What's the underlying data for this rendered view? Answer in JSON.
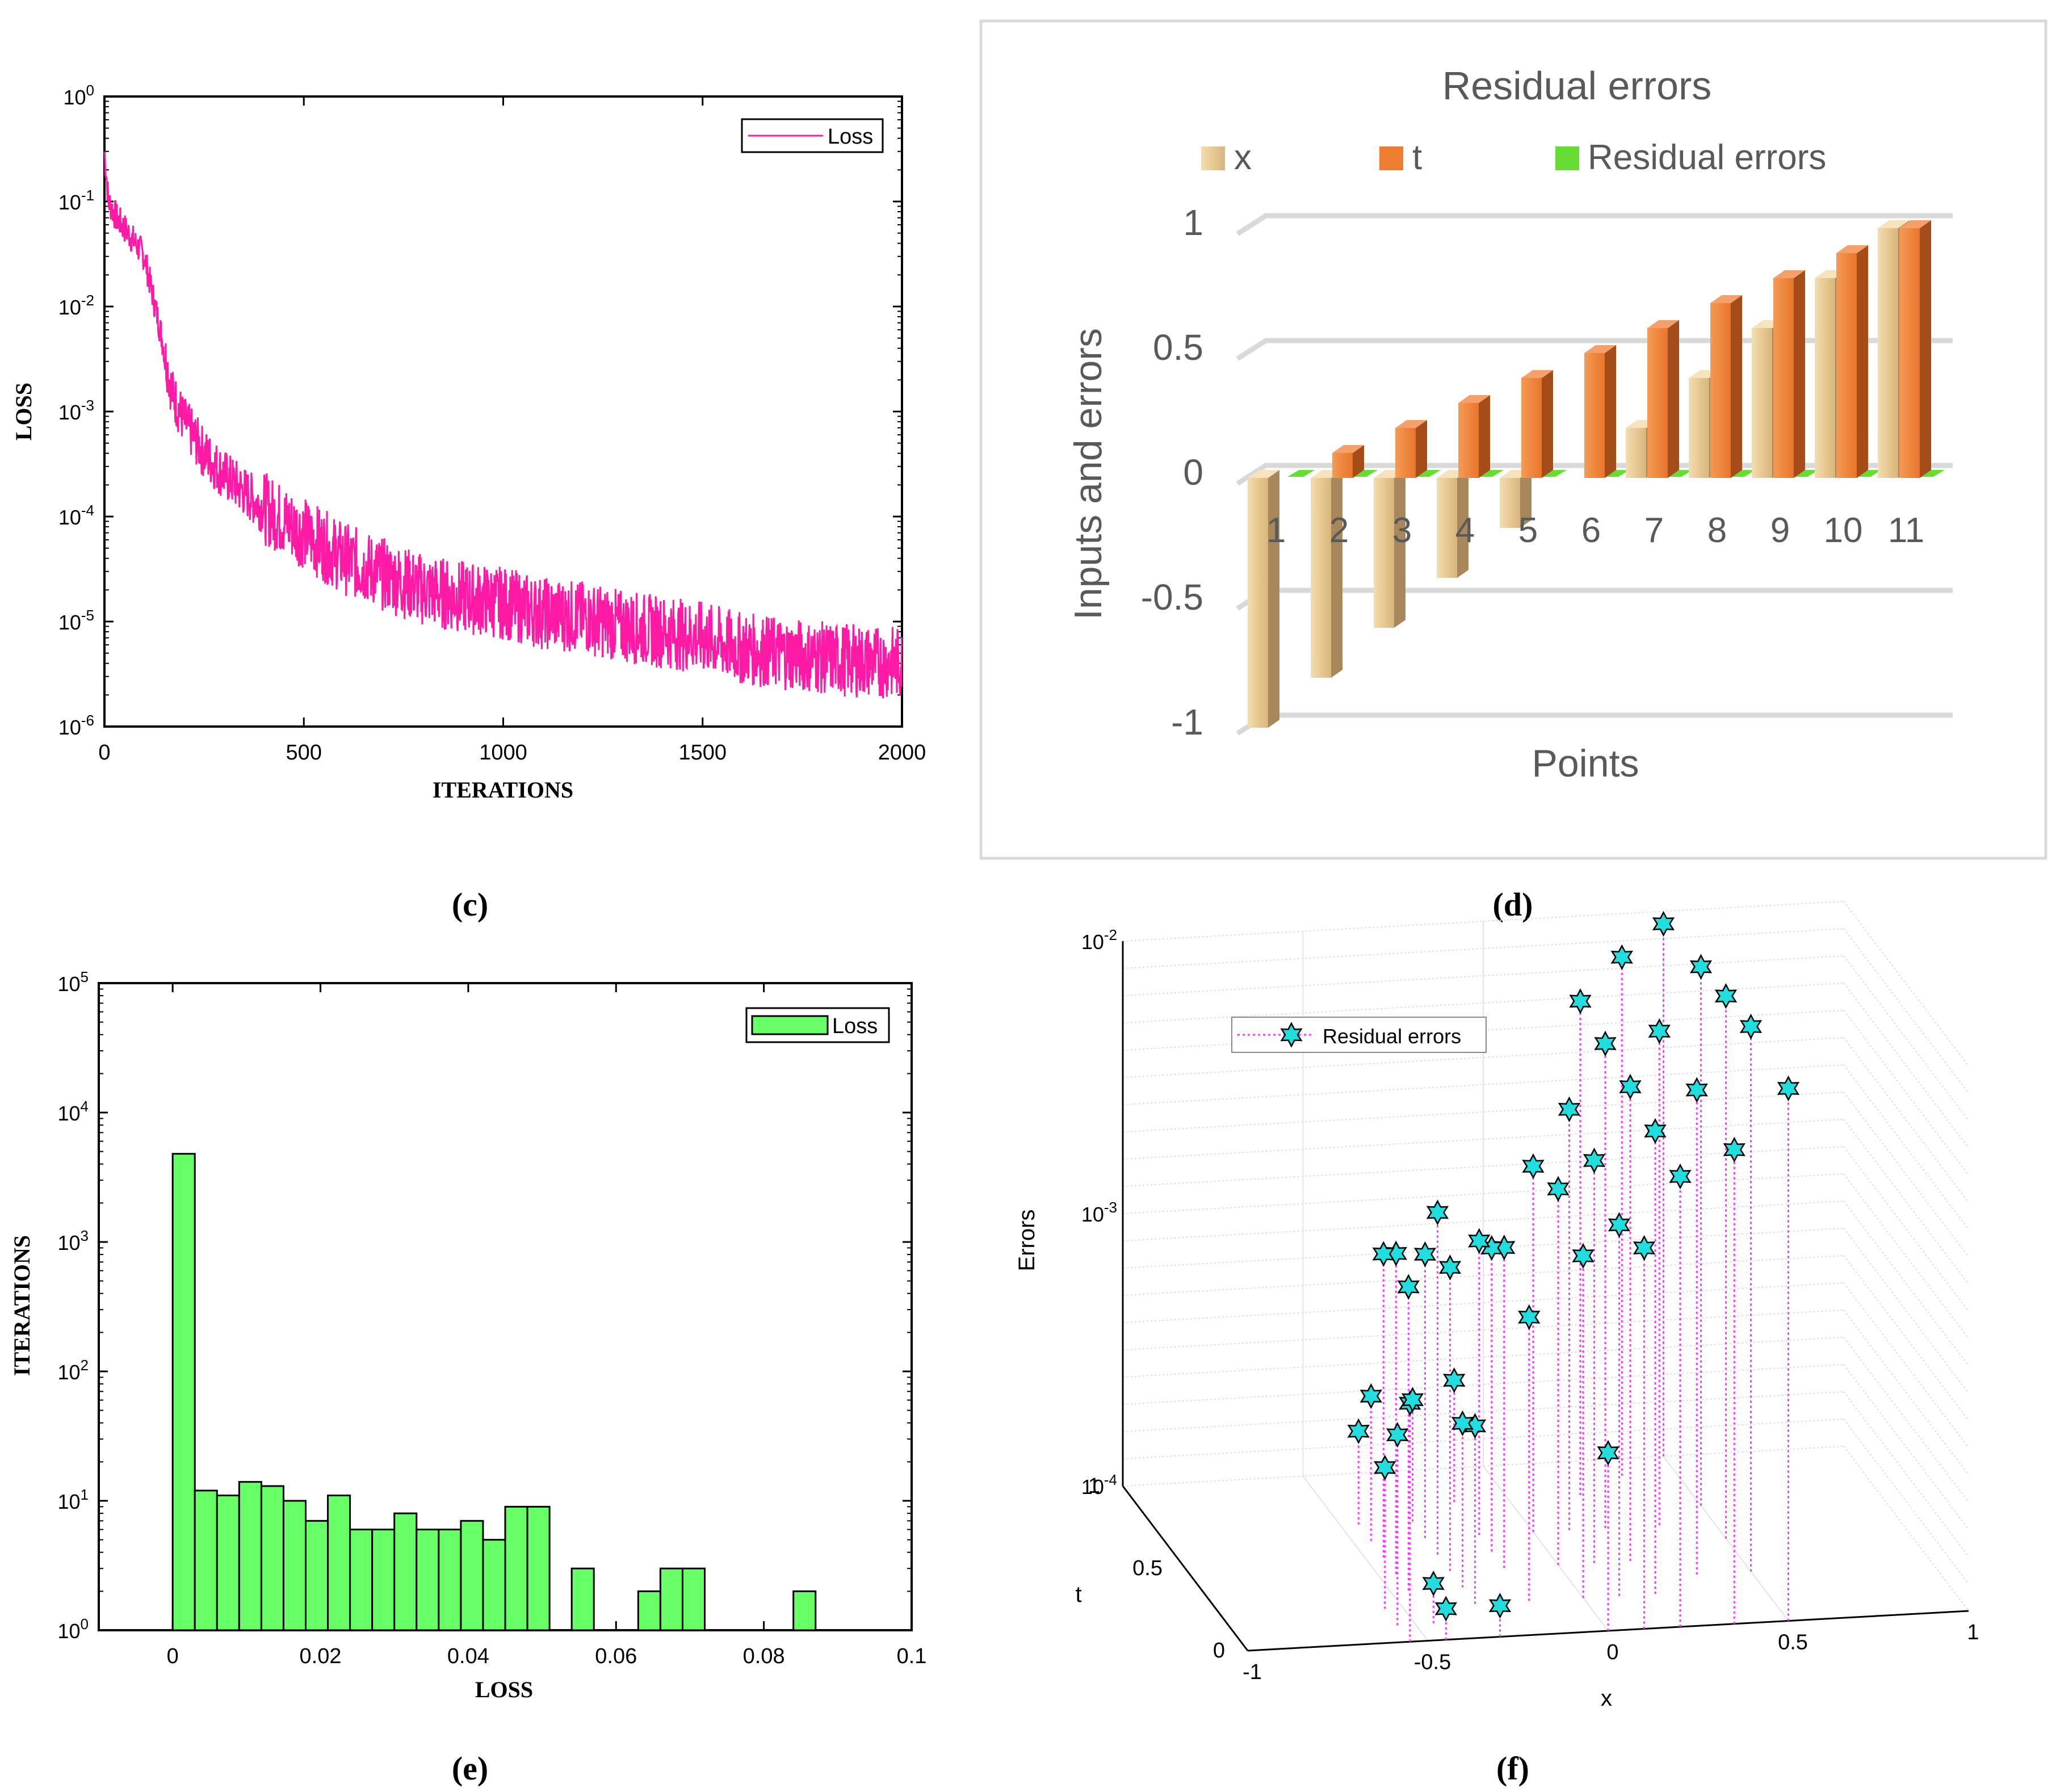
{
  "panel_labels": {
    "c": "(c)",
    "d": "(d)",
    "e": "(e)",
    "f": "(f)"
  },
  "chart_data": [
    {
      "panel": "c",
      "type": "line",
      "xlabel": "ITERATIONS",
      "ylabel": "LOSS",
      "yscale": "log",
      "xlim": [
        0,
        2000
      ],
      "ylim_exp": [
        -6,
        0
      ],
      "xticks": [
        "0",
        "500",
        "1000",
        "1500",
        "2000"
      ],
      "yticks": [
        "-6",
        "-5",
        "-4",
        "-3",
        "-2",
        "-1",
        "0"
      ],
      "legend": [
        "Loss"
      ],
      "legend_loc": "top-right",
      "series": [
        {
          "name": "Loss",
          "color": "#ff1aa6",
          "x": [
            0,
            10,
            30,
            60,
            100,
            140,
            170,
            200,
            250,
            300,
            400,
            500,
            600,
            700,
            800,
            900,
            1000,
            1100,
            1200,
            1300,
            1400,
            1500,
            1600,
            1700,
            1800,
            1900,
            2000
          ],
          "y": [
            0.3,
            0.1,
            0.07,
            0.05,
            0.03,
            0.006,
            0.0015,
            0.0008,
            0.0004,
            0.00025,
            0.00012,
            7e-05,
            4e-05,
            2.8e-05,
            2e-05,
            1.7e-05,
            1.5e-05,
            1.2e-05,
            1.1e-05,
            9e-06,
            8e-06,
            7e-06,
            5.5e-06,
            5e-06,
            4.5e-06,
            4.2e-06,
            4e-06
          ]
        }
      ]
    },
    {
      "panel": "d",
      "type": "bar",
      "title": "Residual errors",
      "xlabel": "Points",
      "ylabel": "Inputs and errors",
      "categories": [
        "1",
        "2",
        "3",
        "4",
        "5",
        "6",
        "7",
        "8",
        "9",
        "10",
        "11"
      ],
      "yticks": [
        "1",
        "0.5",
        "0",
        "-0.5",
        "-1"
      ],
      "ylim": [
        -1,
        1
      ],
      "legend_loc": "top",
      "series": [
        {
          "name": "x",
          "color": "#e9cf9f",
          "values": [
            -1,
            -0.8,
            -0.6,
            -0.4,
            -0.2,
            0,
            0.2,
            0.4,
            0.6,
            0.8,
            1
          ]
        },
        {
          "name": "t",
          "color": "#ed7d31",
          "values": [
            0,
            0.1,
            0.2,
            0.3,
            0.4,
            0.5,
            0.6,
            0.7,
            0.8,
            0.9,
            1
          ]
        },
        {
          "name": "Residual errors",
          "color": "#66dd33",
          "values": [
            0,
            0,
            0,
            0,
            0,
            0,
            0,
            0,
            0,
            0,
            0
          ]
        }
      ]
    },
    {
      "panel": "e",
      "type": "bar",
      "xlabel": "LOSS",
      "ylabel": "ITERATIONS",
      "yscale": "log",
      "xlim": [
        -0.01,
        0.1
      ],
      "ylim_exp": [
        0,
        5
      ],
      "xticks": [
        "0",
        "0.02",
        "0.04",
        "0.06",
        "0.08",
        "0.1"
      ],
      "yticks": [
        "0",
        "1",
        "2",
        "3",
        "4",
        "5"
      ],
      "legend": [
        "Loss"
      ],
      "legend_loc": "top-right",
      "bin_width": 0.003,
      "bin_starts": [
        0,
        0.003,
        0.006,
        0.009,
        0.012,
        0.015,
        0.018,
        0.021,
        0.024,
        0.027,
        0.03,
        0.033,
        0.036,
        0.039,
        0.042,
        0.045,
        0.048,
        0.054,
        0.063,
        0.066,
        0.069,
        0.084
      ],
      "values": [
        4800,
        12,
        11,
        14,
        13,
        10,
        7,
        11,
        6,
        6,
        8,
        6,
        6,
        7,
        5,
        9,
        9,
        3,
        2,
        3,
        3,
        2
      ],
      "color": "#66ff66"
    },
    {
      "panel": "f",
      "type": "scatter",
      "xlabel": "x",
      "ylabel": "Errors",
      "zlabel": "t",
      "zscale": "log",
      "xticks": [
        "-1",
        "-0.5",
        "0",
        "0.5",
        "1"
      ],
      "tticks": [
        "0",
        "0.5",
        "1"
      ],
      "zticks": [
        "-4",
        "-3",
        "-2"
      ],
      "legend": [
        "Residual errors"
      ],
      "legend_loc": "top-left",
      "marker_color": "#22dddd",
      "stem_color": "#ff33ff",
      "series": [
        {
          "name": "Residual errors",
          "points": [
            [
              -0.55,
              0.0,
              0.00075
            ],
            [
              -0.55,
              0.1,
              0.0005
            ],
            [
              -0.55,
              0.2,
              0.00033
            ],
            [
              -0.45,
              0.0,
              0.00013
            ],
            [
              -0.45,
              0.1,
              0.00014
            ],
            [
              -0.45,
              0.3,
              0.0013
            ],
            [
              -0.45,
              0.4,
              0.0015
            ],
            [
              -0.45,
              0.5,
              0.0013
            ],
            [
              -0.45,
              0.6,
              0.00034
            ],
            [
              -0.45,
              0.7,
              0.00022
            ],
            [
              -0.3,
              0.0,
              0.00013
            ],
            [
              -0.3,
              0.2,
              0.00045
            ],
            [
              -0.3,
              0.3,
              0.0004
            ],
            [
              -0.3,
              0.4,
              0.0013
            ],
            [
              -0.3,
              0.5,
              0.0018
            ],
            [
              -0.3,
              0.6,
              0.0011
            ],
            [
              -0.3,
              0.7,
              0.00028
            ],
            [
              -0.15,
              0.2,
              0.0011
            ],
            [
              -0.15,
              0.4,
              0.0015
            ],
            [
              -0.15,
              0.5,
              0.0013
            ],
            [
              -0.15,
              0.6,
              0.0012
            ],
            [
              -0.15,
              0.8,
              0.00028
            ],
            [
              0.0,
              0.0,
              0.00045
            ],
            [
              0.0,
              0.2,
              0.0018
            ],
            [
              0.0,
              0.4,
              0.0024
            ],
            [
              0.0,
              0.6,
              0.0022
            ],
            [
              0.1,
              0.0,
              0.0025
            ],
            [
              0.1,
              0.2,
              0.0023
            ],
            [
              0.1,
              0.4,
              0.003
            ],
            [
              0.1,
              0.6,
              0.0035
            ],
            [
              0.2,
              0.0,
              0.0045
            ],
            [
              0.2,
              0.2,
              0.005
            ],
            [
              0.2,
              0.4,
              0.0055
            ],
            [
              0.2,
              0.6,
              0.006
            ],
            [
              0.2,
              0.8,
              0.0065
            ],
            [
              0.35,
              0.0,
              0.0055
            ],
            [
              0.35,
              0.3,
              0.006
            ],
            [
              0.35,
              0.6,
              0.0065
            ],
            [
              0.35,
              0.9,
              0.008
            ],
            [
              0.5,
              0.0,
              0.009
            ],
            [
              0.5,
              0.3,
              0.01
            ],
            [
              0.5,
              0.5,
              0.0098
            ],
            [
              0.5,
              0.7,
              0.0095
            ],
            [
              0.5,
              1.0,
              0.009
            ]
          ]
        }
      ]
    }
  ]
}
